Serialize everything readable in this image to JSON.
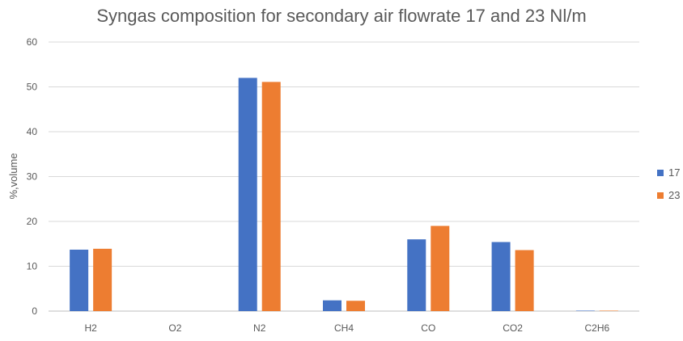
{
  "chart_data": {
    "type": "bar",
    "title": "Syngas composition for  secondary air flowrate 17 and 23 Nl/m",
    "xlabel": "",
    "ylabel": "%,volume",
    "ylim": [
      0,
      60
    ],
    "yticks": [
      0,
      10,
      20,
      30,
      40,
      50,
      60
    ],
    "grid": true,
    "legend_position": "right",
    "categories": [
      "H2",
      "O2",
      "N2",
      "CH4",
      "CO",
      "CO2",
      "C2H6"
    ],
    "series": [
      {
        "name": "17",
        "color": "#4472c4",
        "values": [
          13.7,
          0,
          52.0,
          2.4,
          16.0,
          15.4,
          0.1
        ]
      },
      {
        "name": "23",
        "color": "#ed7d31",
        "values": [
          13.9,
          0,
          51.1,
          2.3,
          19.0,
          13.6,
          0.1
        ]
      }
    ]
  }
}
